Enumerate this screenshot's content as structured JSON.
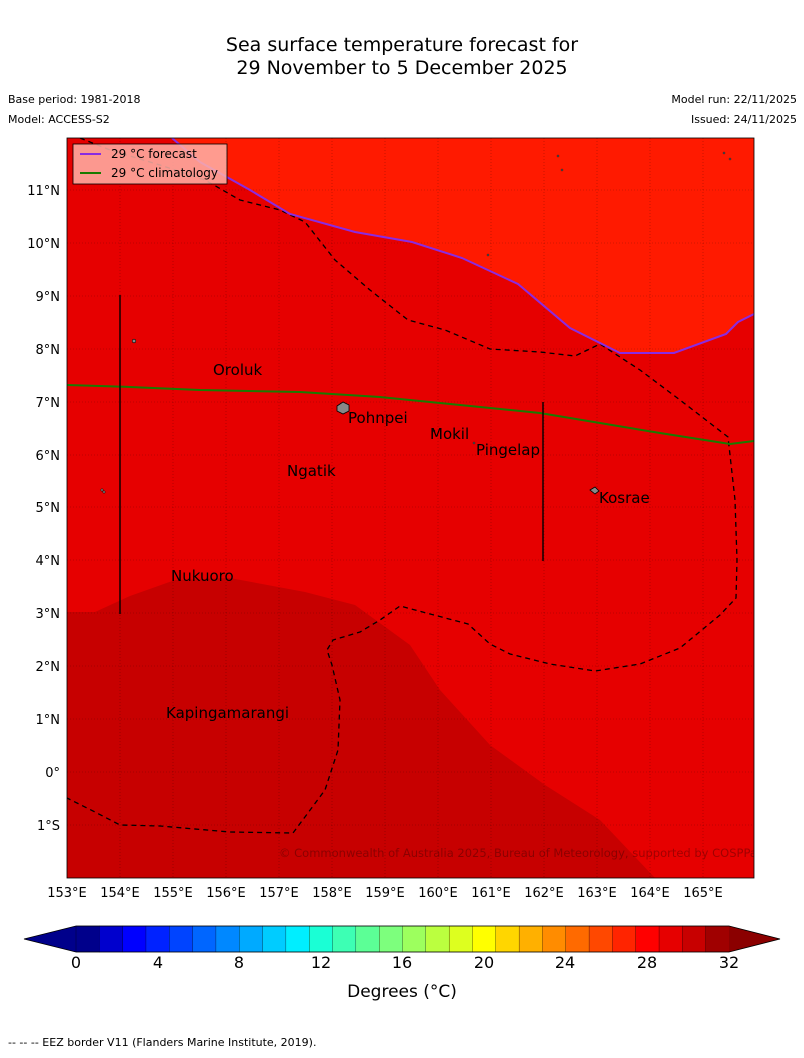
{
  "title": {
    "line1": "Sea surface temperature forecast for",
    "line2": "29 November to 5 December 2025"
  },
  "meta": {
    "base_period": "Base period: 1981-2018",
    "model": "Model: ACCESS-S2",
    "model_run": "Model run: 22/11/2025",
    "issued": "Issued: 24/11/2025"
  },
  "legend": {
    "forecast": "29 °C  forecast",
    "climatology": "29 °C  climatology"
  },
  "colors": {
    "hot": "#ff1a00",
    "warm": "#e60000",
    "deep": "#c70000",
    "forecast_line": "#8a2be2",
    "climatology_line": "#1a7a00"
  },
  "axes": {
    "lon_labels": [
      "153°E",
      "154°E",
      "155°E",
      "156°E",
      "157°E",
      "158°E",
      "159°E",
      "160°E",
      "161°E",
      "162°E",
      "163°E",
      "164°E",
      "165°E"
    ],
    "lat_labels": [
      "11°N",
      "10°N",
      "9°N",
      "8°N",
      "7°N",
      "6°N",
      "5°N",
      "4°N",
      "3°N",
      "2°N",
      "1°N",
      "0°",
      "1°S"
    ]
  },
  "places": {
    "oroluk": "Oroluk",
    "pohnpei": "Pohnpei",
    "mokil": "Mokil",
    "pingelap": "Pingelap",
    "ngatik": "Ngatik",
    "kosrae": "Kosrae",
    "nukuoro": "Nukuoro",
    "kapingamarangi": "Kapingamarangi"
  },
  "copyright": "© Commonwealth of Australia 2025, Bureau of Meteorology, supported by COSPPac",
  "colorbar": {
    "ticks": [
      "0",
      "4",
      "8",
      "12",
      "16",
      "20",
      "24",
      "28",
      "32"
    ],
    "label": "Degrees (°C)",
    "colors": [
      "#00008b",
      "#0000cd",
      "#0000ff",
      "#0022ff",
      "#0044ff",
      "#0066ff",
      "#0088ff",
      "#00aaff",
      "#00ccff",
      "#00eeff",
      "#1affd5",
      "#3dffb4",
      "#5cff96",
      "#7dff7d",
      "#9dff5e",
      "#bbff3f",
      "#ddff1f",
      "#ffff00",
      "#ffd600",
      "#ffb000",
      "#ff8c00",
      "#ff6a00",
      "#ff4800",
      "#ff2400",
      "#ff0000",
      "#e60000",
      "#c80000",
      "#a00000"
    ]
  },
  "footnote": "--  --  -- EEZ border V11 (Flanders Marine Institute, 2019)."
}
